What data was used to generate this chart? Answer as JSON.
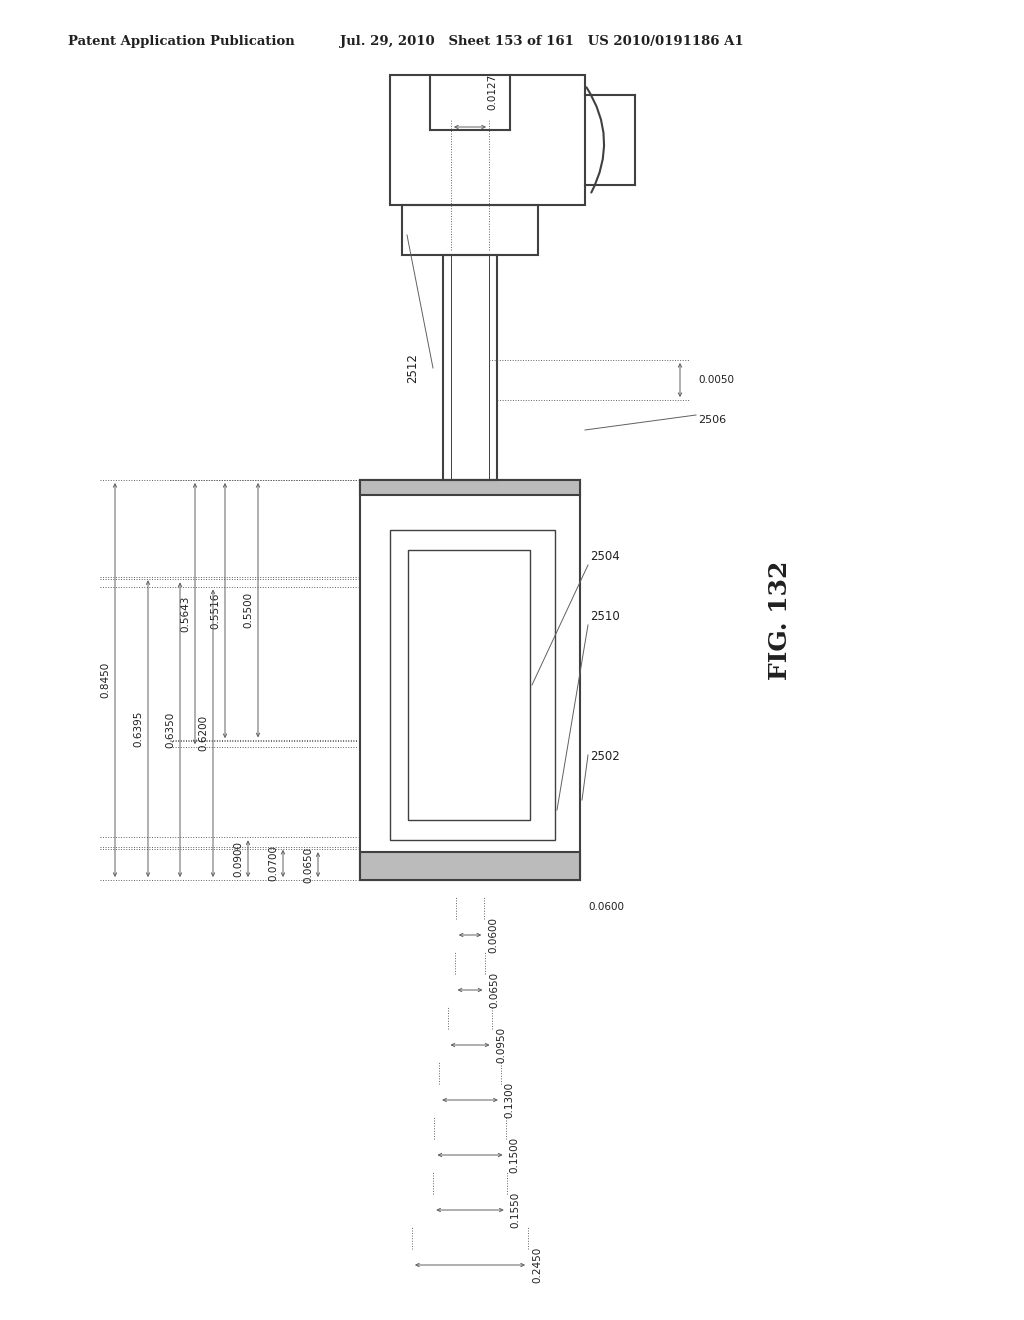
{
  "title_left": "Patent Application Publication",
  "title_mid": "Jul. 29, 2010   Sheet 153 of 161   US 2010/0191186 A1",
  "fig_label": "FIG. 132",
  "background": "#ffffff",
  "line_color": "#404040",
  "dim_color": "#606060",
  "text_color": "#202020",
  "annotations": {
    "dim_0127": "0.0127",
    "dim_0050": "0.0050",
    "dim_0600": "0.0600",
    "dim_5643": "0.5643",
    "dim_5516": "0.5516",
    "dim_5500": "0.5500",
    "dim_8450": "0.8450",
    "dim_6395": "0.6395",
    "dim_6350": "0.6350",
    "dim_6200": "0.6200",
    "dim_0900": "0.0900",
    "dim_0700": "0.0700",
    "dim_0650v": "0.0650",
    "dim_2450": "0.2450",
    "dim_1550": "0.1550",
    "dim_1500": "0.1500",
    "dim_1300": "0.1300",
    "dim_0950": "0.0950",
    "dim_0650h": "0.0650",
    "ref_2502": "2502",
    "ref_2504": "2504",
    "ref_2506": "2506",
    "ref_2510": "2510",
    "ref_2512": "2512"
  }
}
